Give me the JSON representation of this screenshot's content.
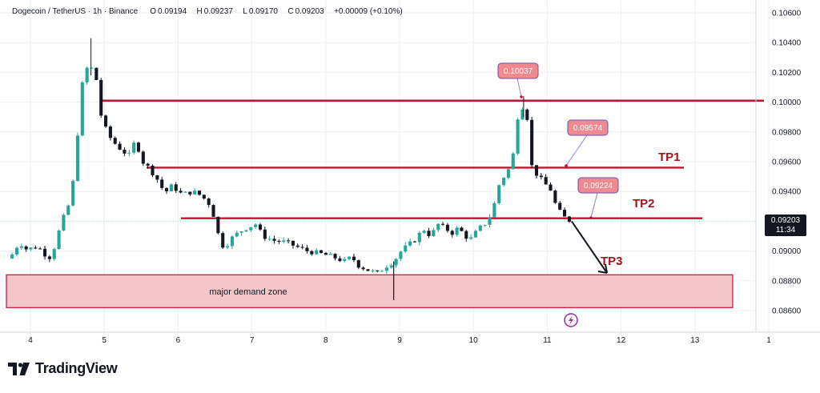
{
  "legend": {
    "symbol": "Dogecoin / TetherUS · 1h · Binance",
    "open_label": "O",
    "open": "0.09194",
    "high_label": "H",
    "high": "0.09237",
    "low_label": "L",
    "low": "0.09170",
    "close_label": "C",
    "close": "0.09203",
    "change": "+0.00009 (+0.10%)"
  },
  "price_tag": {
    "price": "0.09203",
    "countdown": "11:34"
  },
  "brand": {
    "name": "TradingView"
  },
  "colors": {
    "up": "#26a69a",
    "down": "#131722",
    "level_line": "#c8102e",
    "zone_fill": "#f3c6ca",
    "callout_fill": "#f08a8f"
  },
  "chart_data": {
    "type": "candlestick",
    "title": "Dogecoin / TetherUS · 1h · Binance",
    "x_ticks": [
      "4",
      "5",
      "6",
      "7",
      "8",
      "9",
      "10",
      "11",
      "12",
      "13",
      "1"
    ],
    "y_ticks": [
      "0.10600",
      "0.10400",
      "0.10200",
      "0.10000",
      "0.09800",
      "0.09600",
      "0.09400",
      "0.09200",
      "0.09000",
      "0.08800",
      "0.08600"
    ],
    "ylim": [
      0.0852,
      0.1062
    ],
    "xlim": [
      3.7,
      13.1
    ],
    "grid": true,
    "close_path": [
      [
        3.72,
        0.0895
      ],
      [
        3.85,
        0.0906
      ],
      [
        3.95,
        0.0901
      ],
      [
        4.1,
        0.0903
      ],
      [
        4.25,
        0.0895
      ],
      [
        4.32,
        0.0902
      ],
      [
        4.42,
        0.0919
      ],
      [
        4.55,
        0.0935
      ],
      [
        4.62,
        0.0965
      ],
      [
        4.68,
        0.1008
      ],
      [
        4.78,
        0.1025
      ],
      [
        4.88,
        0.102
      ],
      [
        4.96,
        0.099
      ],
      [
        5.05,
        0.0978
      ],
      [
        5.15,
        0.0972
      ],
      [
        5.25,
        0.0967
      ],
      [
        5.35,
        0.0964
      ],
      [
        5.42,
        0.0975
      ],
      [
        5.52,
        0.096
      ],
      [
        5.62,
        0.0955
      ],
      [
        5.72,
        0.0948
      ],
      [
        5.82,
        0.0939
      ],
      [
        5.92,
        0.0944
      ],
      [
        6.05,
        0.0938
      ],
      [
        6.2,
        0.094
      ],
      [
        6.32,
        0.0937
      ],
      [
        6.45,
        0.093
      ],
      [
        6.55,
        0.091
      ],
      [
        6.62,
        0.0902
      ],
      [
        6.75,
        0.091
      ],
      [
        6.9,
        0.0915
      ],
      [
        7.05,
        0.0918
      ],
      [
        7.15,
        0.091
      ],
      [
        7.3,
        0.0907
      ],
      [
        7.45,
        0.0906
      ],
      [
        7.6,
        0.0903
      ],
      [
        7.75,
        0.09
      ],
      [
        7.95,
        0.0898
      ],
      [
        8.1,
        0.0896
      ],
      [
        8.25,
        0.0893
      ],
      [
        8.35,
        0.0896
      ],
      [
        8.45,
        0.089
      ],
      [
        8.58,
        0.0887
      ],
      [
        8.7,
        0.0885
      ],
      [
        8.82,
        0.089
      ],
      [
        8.92,
        0.0893
      ],
      [
        9.02,
        0.09
      ],
      [
        9.12,
        0.0904
      ],
      [
        9.22,
        0.0908
      ],
      [
        9.32,
        0.0915
      ],
      [
        9.42,
        0.091
      ],
      [
        9.52,
        0.0918
      ],
      [
        9.62,
        0.0915
      ],
      [
        9.72,
        0.0912
      ],
      [
        9.8,
        0.0916
      ],
      [
        9.88,
        0.091
      ],
      [
        9.98,
        0.0908
      ],
      [
        10.05,
        0.0914
      ],
      [
        10.15,
        0.0918
      ],
      [
        10.25,
        0.0925
      ],
      [
        10.35,
        0.0945
      ],
      [
        10.45,
        0.0953
      ],
      [
        10.52,
        0.0958
      ],
      [
        10.6,
        0.099
      ],
      [
        10.66,
        0.0997
      ],
      [
        10.72,
        0.0994
      ],
      [
        10.78,
        0.0958
      ],
      [
        10.85,
        0.0952
      ],
      [
        10.95,
        0.0946
      ],
      [
        11.05,
        0.0941
      ],
      [
        11.12,
        0.093
      ],
      [
        11.2,
        0.0924
      ],
      [
        11.27,
        0.0921
      ],
      [
        11.33,
        0.092
      ]
    ],
    "candle_count": 120,
    "horizontal_levels": [
      {
        "price": 0.1001,
        "from": 4.93,
        "to": 13.1
      },
      {
        "price": 0.0956,
        "from": 5.55,
        "to": 12.7
      },
      {
        "price": 0.0922,
        "from": 6.05,
        "to": 13.05
      }
    ],
    "demand_zone": {
      "label": "major demand zone",
      "price_top": 0.0884,
      "price_bottom": 0.0862,
      "from": 3.7,
      "to": 13.5
    },
    "callouts": [
      {
        "label": "0.10037",
        "anchor_x": 10.65,
        "anchor_price": 0.1003,
        "box_x": 10.6,
        "box_price": 0.1022
      },
      {
        "label": "0.09574",
        "anchor_x": 11.25,
        "anchor_price": 0.0957,
        "box_x": 11.45,
        "box_price": 0.0985
      },
      {
        "label": "0.09224",
        "anchor_x": 11.55,
        "anchor_price": 0.0922,
        "box_x": 11.55,
        "box_price": 0.094
      }
    ],
    "annotations": [
      {
        "text": "TP1",
        "x": 12.55,
        "price": 0.0966
      },
      {
        "text": "TP2",
        "x": 12.35,
        "price": 0.0935
      },
      {
        "text": "TP3",
        "x": 11.78,
        "price": 0.0899
      }
    ],
    "projection_arrow": {
      "from_x": 11.33,
      "from_price": 0.092,
      "to_x": 11.88,
      "to_price": 0.0887
    },
    "current_price_line": 0.092
  }
}
